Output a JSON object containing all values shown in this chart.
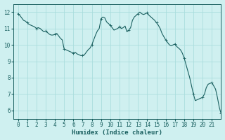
{
  "title": "",
  "xlabel": "Humidex (Indice chaleur)",
  "ylabel": "",
  "xlim": [
    -0.5,
    22.0
  ],
  "ylim": [
    5.5,
    12.5
  ],
  "yticks": [
    6,
    7,
    8,
    9,
    10,
    11,
    12
  ],
  "xticks": [
    0,
    1,
    2,
    3,
    4,
    5,
    6,
    7,
    8,
    9,
    10,
    11,
    12,
    13,
    14,
    15,
    16,
    17,
    18,
    19,
    20,
    21
  ],
  "bg_color": "#cff0f0",
  "grid_color": "#aadddd",
  "line_color": "#1a6060",
  "x": [
    0,
    0.2,
    0.4,
    0.6,
    0.8,
    1.0,
    1.2,
    1.4,
    1.6,
    1.8,
    2.0,
    2.2,
    2.4,
    2.6,
    2.8,
    3.0,
    3.2,
    3.4,
    3.6,
    3.8,
    4.0,
    4.2,
    4.4,
    4.6,
    4.8,
    5.0,
    5.2,
    5.4,
    5.6,
    5.8,
    6.0,
    6.2,
    6.4,
    6.6,
    6.8,
    7.0,
    7.2,
    7.4,
    7.6,
    7.8,
    8.0,
    8.2,
    8.4,
    8.6,
    8.8,
    9.0,
    9.2,
    9.4,
    9.6,
    9.8,
    10.0,
    10.2,
    10.4,
    10.6,
    10.8,
    11.0,
    11.2,
    11.4,
    11.6,
    11.8,
    12.0,
    12.2,
    12.4,
    12.6,
    12.8,
    13.0,
    13.2,
    13.4,
    13.6,
    13.8,
    14.0,
    14.2,
    14.4,
    14.6,
    14.8,
    15.0,
    15.2,
    15.4,
    15.6,
    15.8,
    16.0,
    16.2,
    16.4,
    16.6,
    16.8,
    17.0,
    17.2,
    17.4,
    17.6,
    17.8,
    18.0,
    18.2,
    18.4,
    18.6,
    18.8,
    19.0,
    19.2,
    19.4,
    19.6,
    19.8,
    20.0,
    20.2,
    20.4,
    20.6,
    20.8,
    21.0,
    21.2,
    21.4,
    21.6,
    21.8,
    22.0
  ],
  "y": [
    11.9,
    11.8,
    11.65,
    11.5,
    11.45,
    11.35,
    11.25,
    11.2,
    11.15,
    11.1,
    11.0,
    11.05,
    11.0,
    10.9,
    10.8,
    10.85,
    10.75,
    10.65,
    10.6,
    10.6,
    10.65,
    10.7,
    10.55,
    10.4,
    10.3,
    9.75,
    9.7,
    9.65,
    9.6,
    9.55,
    9.5,
    9.55,
    9.45,
    9.4,
    9.35,
    9.35,
    9.4,
    9.55,
    9.7,
    9.8,
    10.0,
    10.3,
    10.6,
    10.85,
    11.0,
    11.6,
    11.7,
    11.65,
    11.4,
    11.3,
    11.2,
    11.05,
    10.9,
    10.95,
    11.0,
    11.1,
    11.0,
    11.05,
    11.15,
    10.8,
    10.9,
    11.05,
    11.5,
    11.7,
    11.8,
    11.9,
    12.0,
    11.9,
    11.85,
    11.9,
    11.95,
    11.8,
    11.7,
    11.6,
    11.5,
    11.35,
    11.2,
    11.0,
    10.7,
    10.5,
    10.3,
    10.15,
    10.0,
    9.95,
    10.0,
    10.05,
    9.9,
    9.8,
    9.7,
    9.5,
    9.2,
    8.8,
    8.4,
    8.0,
    7.5,
    7.0,
    6.6,
    6.65,
    6.7,
    6.75,
    6.8,
    7.0,
    7.4,
    7.6,
    7.65,
    7.7,
    7.5,
    7.3,
    6.8,
    6.2,
    5.8
  ]
}
